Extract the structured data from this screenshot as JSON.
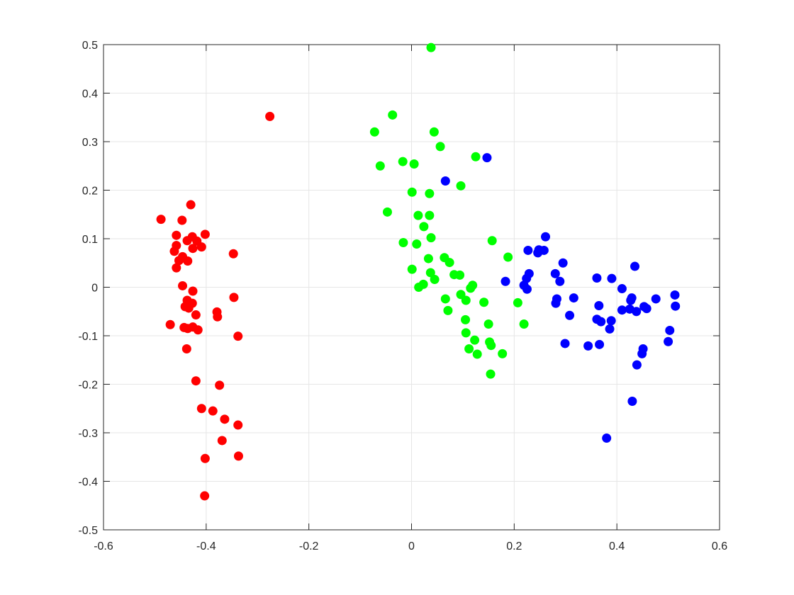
{
  "chart_data": {
    "type": "scatter",
    "title": "",
    "xlabel": "",
    "ylabel": "",
    "xlim": [
      -0.6,
      0.6
    ],
    "ylim": [
      -0.5,
      0.5
    ],
    "xticks": [
      -0.6,
      -0.4,
      -0.2,
      0,
      0.2,
      0.4,
      0.6
    ],
    "yticks": [
      -0.5,
      -0.4,
      -0.3,
      -0.2,
      -0.1,
      0,
      0.1,
      0.2,
      0.3,
      0.4,
      0.5
    ],
    "xtick_labels": [
      "-0.6",
      "-0.4",
      "-0.2",
      "0",
      "0.2",
      "0.4",
      "0.6"
    ],
    "ytick_labels": [
      "-0.5",
      "-0.4",
      "-0.3",
      "-0.2",
      "-0.1",
      "0",
      "0.1",
      "0.2",
      "0.3",
      "0.4",
      "0.5"
    ],
    "grid": true,
    "series": [
      {
        "color": "#ff0000",
        "points": [
          [
            -0.276,
            0.352
          ],
          [
            -0.488,
            0.14
          ],
          [
            -0.43,
            0.17
          ],
          [
            -0.447,
            0.138
          ],
          [
            -0.458,
            0.107
          ],
          [
            -0.427,
            0.104
          ],
          [
            -0.402,
            0.109
          ],
          [
            -0.437,
            0.096
          ],
          [
            -0.418,
            0.095
          ],
          [
            -0.458,
            0.086
          ],
          [
            -0.409,
            0.083
          ],
          [
            -0.426,
            0.08
          ],
          [
            -0.462,
            0.074
          ],
          [
            -0.446,
            0.063
          ],
          [
            -0.453,
            0.055
          ],
          [
            -0.436,
            0.054
          ],
          [
            -0.458,
            0.04
          ],
          [
            -0.347,
            0.069
          ],
          [
            -0.446,
            0.003
          ],
          [
            -0.426,
            -0.008
          ],
          [
            -0.346,
            -0.021
          ],
          [
            -0.437,
            -0.027
          ],
          [
            -0.427,
            -0.033
          ],
          [
            -0.441,
            -0.04
          ],
          [
            -0.434,
            -0.043
          ],
          [
            -0.42,
            -0.057
          ],
          [
            -0.379,
            -0.051
          ],
          [
            -0.378,
            -0.061
          ],
          [
            -0.47,
            -0.077
          ],
          [
            -0.443,
            -0.083
          ],
          [
            -0.436,
            -0.085
          ],
          [
            -0.426,
            -0.082
          ],
          [
            -0.416,
            -0.088
          ],
          [
            -0.338,
            -0.101
          ],
          [
            -0.438,
            -0.127
          ],
          [
            -0.42,
            -0.193
          ],
          [
            -0.374,
            -0.202
          ],
          [
            -0.409,
            -0.25
          ],
          [
            -0.387,
            -0.255
          ],
          [
            -0.364,
            -0.272
          ],
          [
            -0.338,
            -0.284
          ],
          [
            -0.369,
            -0.316
          ],
          [
            -0.337,
            -0.348
          ],
          [
            -0.402,
            -0.353
          ],
          [
            -0.403,
            -0.43
          ]
        ]
      },
      {
        "color": "#00ff00",
        "points": [
          [
            0.038,
            0.494
          ],
          [
            -0.037,
            0.355
          ],
          [
            -0.072,
            0.32
          ],
          [
            0.044,
            0.32
          ],
          [
            0.056,
            0.29
          ],
          [
            0.125,
            0.269
          ],
          [
            -0.017,
            0.259
          ],
          [
            0.005,
            0.254
          ],
          [
            -0.061,
            0.25
          ],
          [
            0.096,
            0.209
          ],
          [
            0.001,
            0.196
          ],
          [
            0.035,
            0.193
          ],
          [
            -0.047,
            0.155
          ],
          [
            0.013,
            0.148
          ],
          [
            0.035,
            0.148
          ],
          [
            0.024,
            0.125
          ],
          [
            0.038,
            0.102
          ],
          [
            -0.016,
            0.092
          ],
          [
            0.01,
            0.089
          ],
          [
            0.157,
            0.096
          ],
          [
            0.188,
            0.062
          ],
          [
            0.064,
            0.061
          ],
          [
            0.033,
            0.059
          ],
          [
            0.074,
            0.051
          ],
          [
            0.001,
            0.037
          ],
          [
            0.037,
            0.03
          ],
          [
            0.083,
            0.026
          ],
          [
            0.094,
            0.025
          ],
          [
            0.045,
            0.016
          ],
          [
            0.023,
            0.006
          ],
          [
            0.014,
            0.0
          ],
          [
            0.119,
            0.004
          ],
          [
            0.115,
            -0.002
          ],
          [
            0.096,
            -0.015
          ],
          [
            0.066,
            -0.024
          ],
          [
            0.106,
            -0.027
          ],
          [
            0.141,
            -0.031
          ],
          [
            0.207,
            -0.032
          ],
          [
            0.071,
            -0.048
          ],
          [
            0.105,
            -0.067
          ],
          [
            0.15,
            -0.076
          ],
          [
            0.219,
            -0.076
          ],
          [
            0.106,
            -0.094
          ],
          [
            0.123,
            -0.109
          ],
          [
            0.152,
            -0.113
          ],
          [
            0.155,
            -0.12
          ],
          [
            0.112,
            -0.127
          ],
          [
            0.128,
            -0.138
          ],
          [
            0.177,
            -0.137
          ],
          [
            0.154,
            -0.179
          ]
        ]
      },
      {
        "color": "#0000ff",
        "points": [
          [
            0.147,
            0.267
          ],
          [
            0.066,
            0.219
          ],
          [
            0.261,
            0.104
          ],
          [
            0.227,
            0.076
          ],
          [
            0.246,
            0.071
          ],
          [
            0.248,
            0.077
          ],
          [
            0.258,
            0.076
          ],
          [
            0.295,
            0.05
          ],
          [
            0.435,
            0.043
          ],
          [
            0.229,
            0.028
          ],
          [
            0.28,
            0.028
          ],
          [
            0.224,
            0.018
          ],
          [
            0.361,
            0.019
          ],
          [
            0.39,
            0.018
          ],
          [
            0.183,
            0.012
          ],
          [
            0.289,
            0.012
          ],
          [
            0.219,
            0.004
          ],
          [
            0.225,
            -0.004
          ],
          [
            0.41,
            -0.003
          ],
          [
            0.513,
            -0.016
          ],
          [
            0.316,
            -0.022
          ],
          [
            0.283,
            -0.024
          ],
          [
            0.429,
            -0.022
          ],
          [
            0.427,
            -0.027
          ],
          [
            0.476,
            -0.024
          ],
          [
            0.281,
            -0.033
          ],
          [
            0.365,
            -0.038
          ],
          [
            0.514,
            -0.039
          ],
          [
            0.453,
            -0.04
          ],
          [
            0.458,
            -0.044
          ],
          [
            0.425,
            -0.045
          ],
          [
            0.41,
            -0.047
          ],
          [
            0.438,
            -0.05
          ],
          [
            0.308,
            -0.058
          ],
          [
            0.361,
            -0.066
          ],
          [
            0.369,
            -0.071
          ],
          [
            0.389,
            -0.069
          ],
          [
            0.386,
            -0.086
          ],
          [
            0.503,
            -0.089
          ],
          [
            0.5,
            -0.112
          ],
          [
            0.299,
            -0.116
          ],
          [
            0.344,
            -0.121
          ],
          [
            0.366,
            -0.118
          ],
          [
            0.451,
            -0.127
          ],
          [
            0.449,
            -0.137
          ],
          [
            0.439,
            -0.16
          ],
          [
            0.43,
            -0.235
          ],
          [
            0.38,
            -0.311
          ]
        ]
      }
    ]
  }
}
